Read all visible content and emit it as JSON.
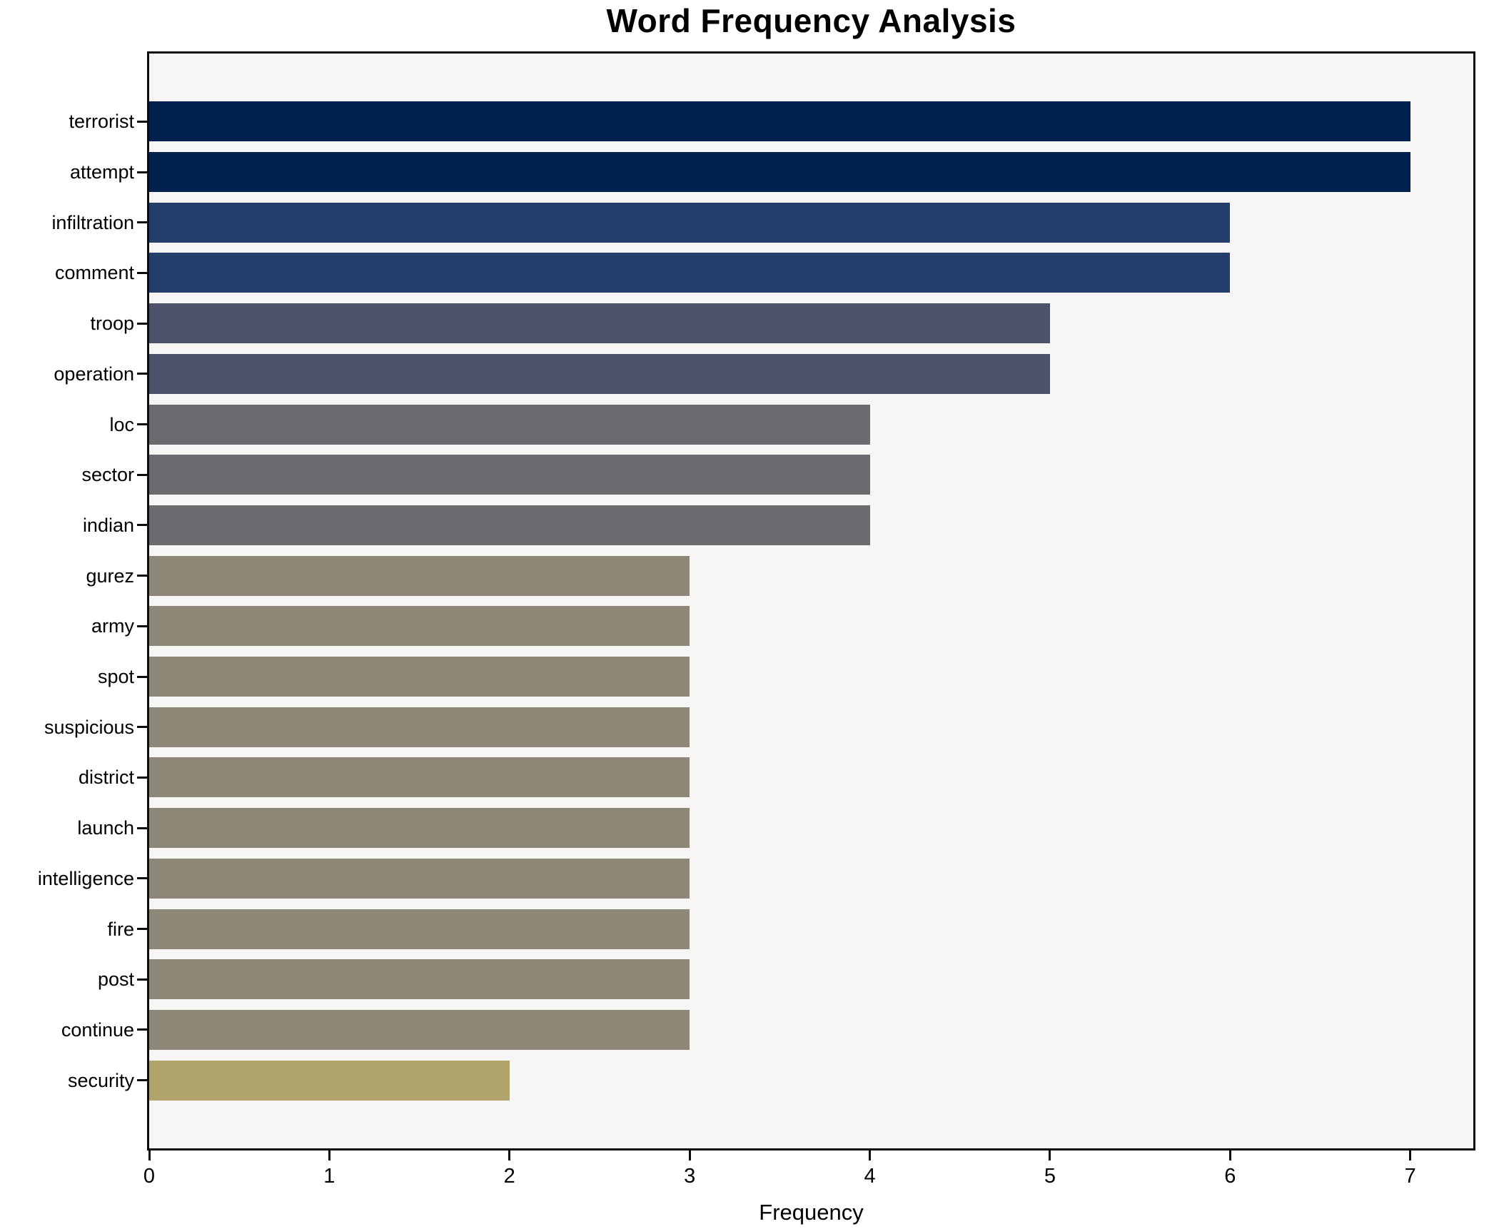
{
  "chart_data": {
    "type": "bar",
    "orientation": "horizontal",
    "title": "Word Frequency Analysis",
    "xlabel": "Frequency",
    "ylabel": "",
    "categories": [
      "terrorist",
      "attempt",
      "infiltration",
      "comment",
      "troop",
      "operation",
      "loc",
      "sector",
      "indian",
      "gurez",
      "army",
      "spot",
      "suspicious",
      "district",
      "launch",
      "intelligence",
      "fire",
      "post",
      "continue",
      "security"
    ],
    "values": [
      7,
      7,
      6,
      6,
      5,
      5,
      4,
      4,
      4,
      3,
      3,
      3,
      3,
      3,
      3,
      3,
      3,
      3,
      3,
      2
    ],
    "bar_colors": [
      "#02214f",
      "#02214f",
      "#233e6b",
      "#233e6b",
      "#4b5269",
      "#4b5269",
      "#6a6b6e",
      "#6a6b6e",
      "#6a6b6e",
      "#8d8777",
      "#8d8777",
      "#8d8777",
      "#8d8777",
      "#8d8777",
      "#8d8777",
      "#8d8777",
      "#8d8777",
      "#8d8777",
      "#8d8777",
      "#b0a46a"
    ],
    "xlim": [
      0,
      7.35
    ],
    "xticks": [
      0,
      1,
      2,
      3,
      4,
      5,
      6,
      7
    ],
    "grid": false,
    "legend": "none",
    "plot_bg": "#f7f6f5",
    "fig_bg": "#ffffff",
    "spine_color": "#0c0c0c",
    "text_color": "#000000"
  }
}
